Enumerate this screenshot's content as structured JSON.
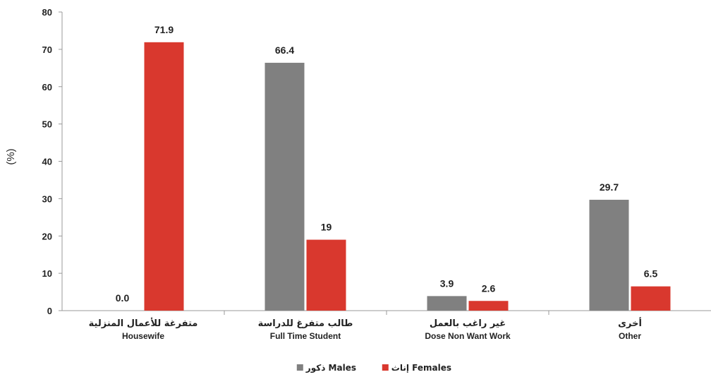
{
  "chart_data": {
    "type": "bar",
    "ylabel": "(%)",
    "ylim": [
      0,
      80
    ],
    "yticks": [
      0,
      10,
      20,
      30,
      40,
      50,
      60,
      70,
      80
    ],
    "grid": false,
    "legend_position": "bottom",
    "categories": [
      {
        "ar": "متفرغة للأعمال المنزلية",
        "en": "Housewife"
      },
      {
        "ar": "طالب متفرغ للدراسة",
        "en": "Full Time Student"
      },
      {
        "ar": "غير راغب بالعمل",
        "en": "Dose Non Want Work"
      },
      {
        "ar": "أخرى",
        "en": "Other"
      }
    ],
    "series": [
      {
        "name": "Males",
        "name_ar": "ذكور",
        "color": "#808080",
        "values": [
          0.0,
          66.4,
          3.9,
          29.7
        ],
        "labels": [
          "0.0",
          "66.4",
          "3.9",
          "29.7"
        ]
      },
      {
        "name": "Females",
        "name_ar": "إناث",
        "color": "#d9382e",
        "values": [
          71.9,
          19,
          2.6,
          6.5
        ],
        "labels": [
          "71.9",
          "19",
          "2.6",
          "6.5"
        ]
      }
    ]
  }
}
